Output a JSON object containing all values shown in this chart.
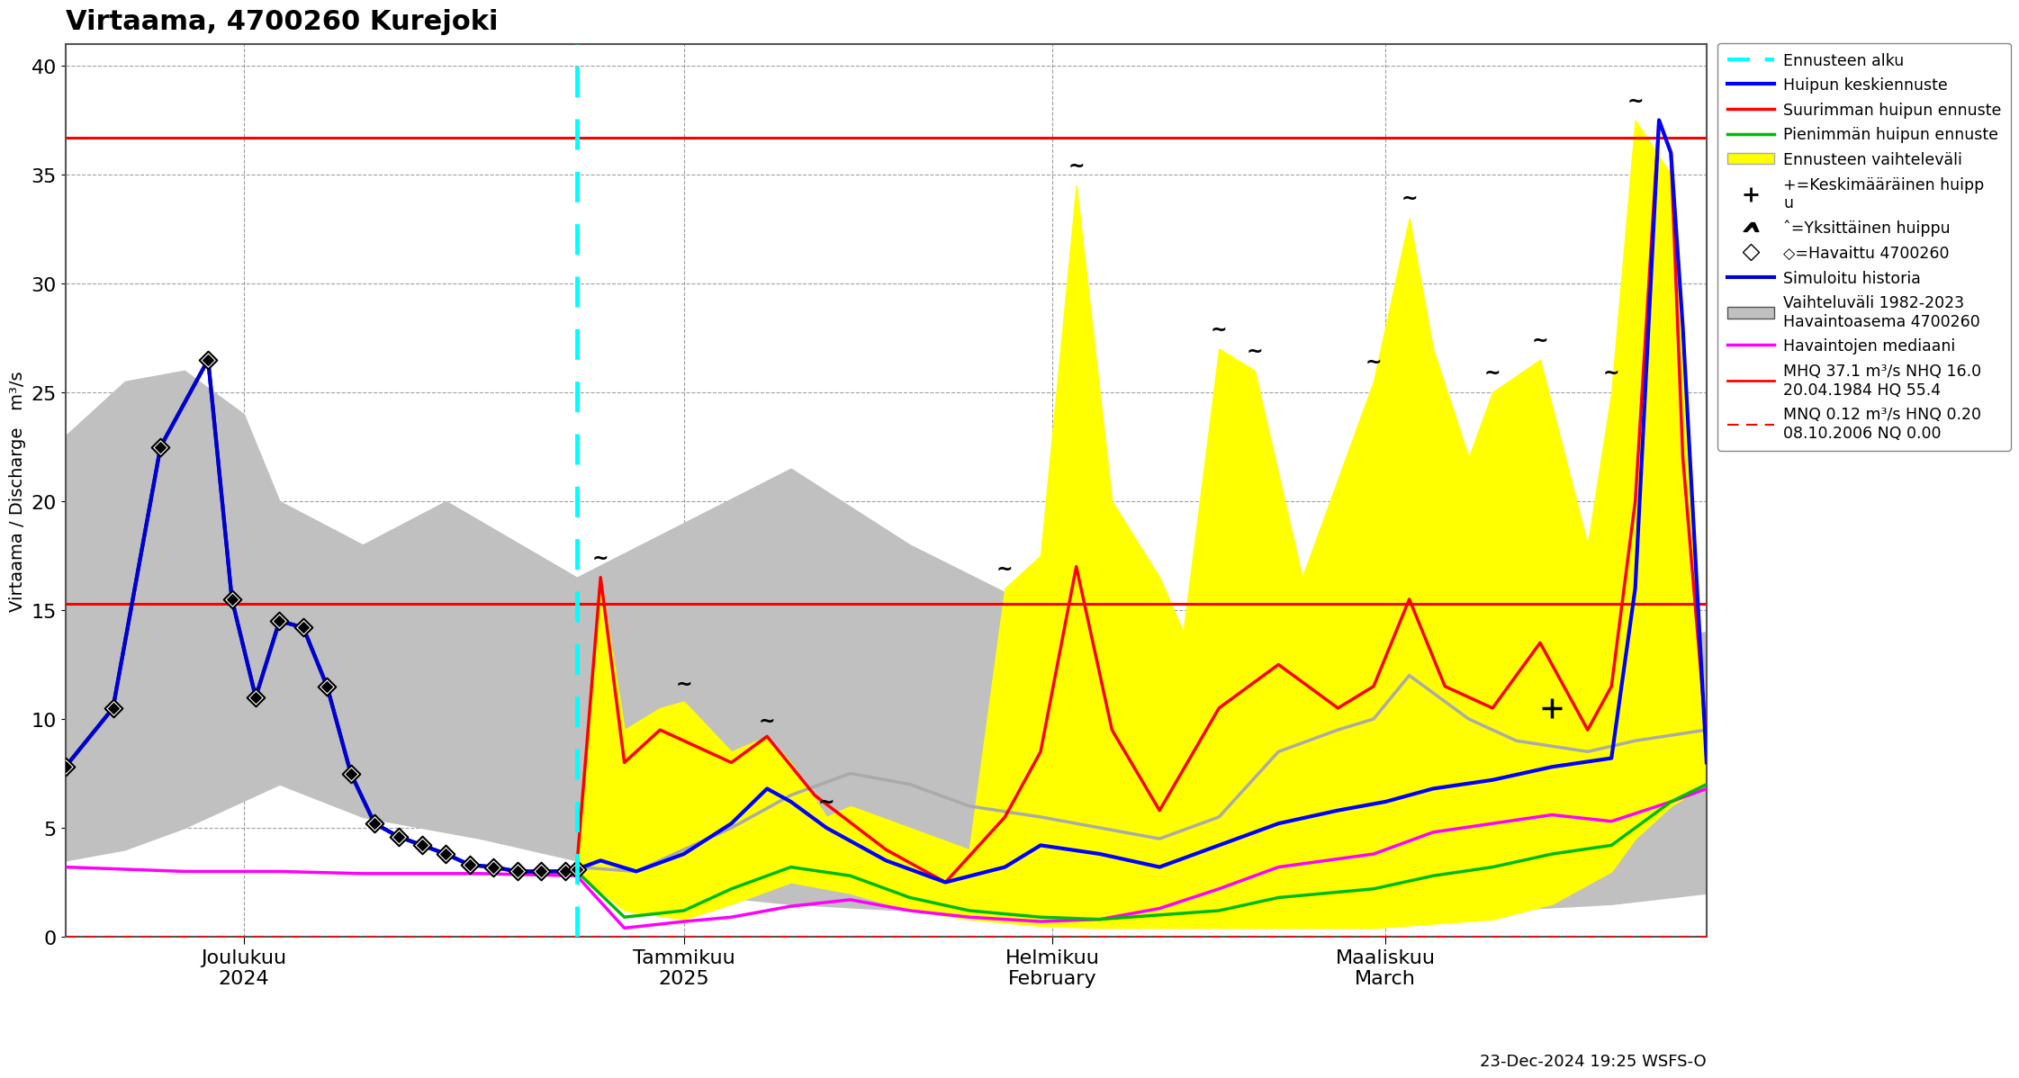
{
  "title": "Virtaama, 4700260 Kurejoki",
  "ylabel": "Virtaama / Discharge   m³/s",
  "ylim": [
    0,
    41
  ],
  "yticks": [
    0,
    5,
    10,
    15,
    20,
    25,
    30,
    35,
    40
  ],
  "bg_color": "#ffffff",
  "hline_upper": 36.7,
  "hline_lower": 15.3,
  "forecast_start": "2024-12-23",
  "t_start": "2024-11-10",
  "t_end": "2025-03-28",
  "xtick_dates": [
    "2024-11-25",
    "2025-01-01",
    "2025-02-01",
    "2025-03-01"
  ],
  "xtick_labels": [
    "Joulukuu\n2024",
    "Tammikuu\n2025",
    "Helmikuu\nFebruary",
    "Maaliskuu\nMarch"
  ],
  "legend_labels": {
    "ennusteen_alku": "Ennusteen alku",
    "huipun_keski": "Huipun keskiennuste",
    "suurimman": "Suurimman huipun ennuste",
    "pienimman": "Pienimmän huipun ennuste",
    "vaihteluvali": "Ennusteen vaihteleväli",
    "keskimaarainen": "+=Keskimääräinen huipp\nu",
    "yksittainen": "ˆ=Yksittäinen huippu",
    "havaittu": "◇=Havaittu 4700260",
    "simuloitu": "Simuloitu historia",
    "vaihteluvali2": "Vaihteluväli 1982-2023\nHavaintoasema 4700260",
    "mediaani": "Havaintojen mediaani",
    "mhq": "MHQ 37.1 m³/s NHQ 16.0\n20.04.1984 HQ 55.4",
    "mnq": "MNQ 0.12 m³/s HNQ 0.20\n08.10.2006 NQ 0.00"
  },
  "date_label": "23-Dec-2024 19:25 WSFS-O",
  "colors": {
    "cyan": "#00ffff",
    "blue": "#0000ff",
    "blue_dark": "#0000cc",
    "red": "#ff0000",
    "green": "#00bb00",
    "yellow": "#ffff00",
    "gray": "#c0c0c0",
    "gray_line": "#aaaaaa",
    "magenta": "#ff00ff",
    "black": "#000000",
    "white": "#ffffff"
  },
  "gray_fill": {
    "lower": [
      [
        "2024-11-10",
        3.5
      ],
      [
        "2024-11-15",
        4.0
      ],
      [
        "2024-11-20",
        5.0
      ],
      [
        "2024-11-28",
        7.0
      ],
      [
        "2024-12-05",
        5.5
      ],
      [
        "2024-12-15",
        4.5
      ],
      [
        "2024-12-23",
        3.5
      ],
      [
        "2025-01-01",
        2.0
      ],
      [
        "2025-01-10",
        1.5
      ],
      [
        "2025-01-20",
        1.2
      ],
      [
        "2025-01-31",
        1.0
      ],
      [
        "2025-02-10",
        0.8
      ],
      [
        "2025-02-20",
        0.8
      ],
      [
        "2025-02-28",
        0.8
      ],
      [
        "2025-03-10",
        1.2
      ],
      [
        "2025-03-20",
        1.5
      ],
      [
        "2025-03-28",
        2.0
      ]
    ],
    "upper": [
      [
        "2024-11-10",
        23.0
      ],
      [
        "2024-11-15",
        25.5
      ],
      [
        "2024-11-20",
        26.0
      ],
      [
        "2024-11-25",
        24.0
      ],
      [
        "2024-11-28",
        20.0
      ],
      [
        "2024-12-05",
        18.0
      ],
      [
        "2024-12-12",
        20.0
      ],
      [
        "2024-12-23",
        16.5
      ],
      [
        "2025-01-01",
        19.0
      ],
      [
        "2025-01-10",
        21.5
      ],
      [
        "2025-01-20",
        18.0
      ],
      [
        "2025-01-31",
        15.0
      ],
      [
        "2025-02-10",
        11.5
      ],
      [
        "2025-02-15",
        9.5
      ],
      [
        "2025-02-20",
        8.5
      ],
      [
        "2025-02-28",
        7.5
      ],
      [
        "2025-03-10",
        10.5
      ],
      [
        "2025-03-15",
        12.5
      ],
      [
        "2025-03-20",
        13.5
      ],
      [
        "2025-03-28",
        14.0
      ]
    ]
  },
  "yellow_fill": {
    "lower": [
      [
        "2024-12-23",
        3.0
      ],
      [
        "2024-12-27",
        1.2
      ],
      [
        "2025-01-01",
        0.8
      ],
      [
        "2025-01-05",
        1.5
      ],
      [
        "2025-01-10",
        2.5
      ],
      [
        "2025-01-15",
        2.0
      ],
      [
        "2025-01-20",
        1.2
      ],
      [
        "2025-01-25",
        0.8
      ],
      [
        "2025-01-31",
        0.5
      ],
      [
        "2025-02-05",
        0.4
      ],
      [
        "2025-02-10",
        0.4
      ],
      [
        "2025-02-15",
        0.4
      ],
      [
        "2025-02-20",
        0.4
      ],
      [
        "2025-02-28",
        0.4
      ],
      [
        "2025-03-05",
        0.6
      ],
      [
        "2025-03-10",
        0.8
      ],
      [
        "2025-03-15",
        1.5
      ],
      [
        "2025-03-20",
        3.0
      ],
      [
        "2025-03-22",
        4.5
      ],
      [
        "2025-03-25",
        6.0
      ],
      [
        "2025-03-28",
        7.0
      ]
    ],
    "upper": [
      [
        "2024-12-23",
        3.0
      ],
      [
        "2024-12-25",
        16.5
      ],
      [
        "2024-12-27",
        9.5
      ],
      [
        "2024-12-30",
        10.5
      ],
      [
        "2025-01-01",
        10.8
      ],
      [
        "2025-01-05",
        8.5
      ],
      [
        "2025-01-08",
        9.2
      ],
      [
        "2025-01-10",
        8.0
      ],
      [
        "2025-01-13",
        5.5
      ],
      [
        "2025-01-15",
        6.0
      ],
      [
        "2025-01-20",
        5.0
      ],
      [
        "2025-01-25",
        4.0
      ],
      [
        "2025-01-28",
        16.0
      ],
      [
        "2025-01-31",
        17.5
      ],
      [
        "2025-02-03",
        34.5
      ],
      [
        "2025-02-06",
        20.0
      ],
      [
        "2025-02-10",
        16.5
      ],
      [
        "2025-02-12",
        14.0
      ],
      [
        "2025-02-15",
        27.0
      ],
      [
        "2025-02-18",
        26.0
      ],
      [
        "2025-02-22",
        16.5
      ],
      [
        "2025-02-28",
        25.5
      ],
      [
        "2025-03-03",
        33.0
      ],
      [
        "2025-03-05",
        27.0
      ],
      [
        "2025-03-08",
        22.0
      ],
      [
        "2025-03-10",
        25.0
      ],
      [
        "2025-03-14",
        26.5
      ],
      [
        "2025-03-18",
        18.0
      ],
      [
        "2025-03-20",
        25.0
      ],
      [
        "2025-03-22",
        37.5
      ],
      [
        "2025-03-25",
        35.0
      ],
      [
        "2025-03-28",
        7.0
      ]
    ]
  },
  "gray_sim_line": [
    [
      "2024-12-23",
      3.2
    ],
    [
      "2024-12-28",
      3.0
    ],
    [
      "2025-01-01",
      4.0
    ],
    [
      "2025-01-05",
      5.0
    ],
    [
      "2025-01-10",
      6.5
    ],
    [
      "2025-01-15",
      7.5
    ],
    [
      "2025-01-20",
      7.0
    ],
    [
      "2025-01-25",
      6.0
    ],
    [
      "2025-01-31",
      5.5
    ],
    [
      "2025-02-05",
      5.0
    ],
    [
      "2025-02-10",
      4.5
    ],
    [
      "2025-02-15",
      5.5
    ],
    [
      "2025-02-20",
      8.5
    ],
    [
      "2025-02-25",
      9.5
    ],
    [
      "2025-02-28",
      10.0
    ],
    [
      "2025-03-03",
      12.0
    ],
    [
      "2025-03-08",
      10.0
    ],
    [
      "2025-03-12",
      9.0
    ],
    [
      "2025-03-18",
      8.5
    ],
    [
      "2025-03-22",
      9.0
    ],
    [
      "2025-03-28",
      9.5
    ]
  ],
  "median_line": [
    [
      "2024-11-10",
      3.2
    ],
    [
      "2024-11-20",
      3.0
    ],
    [
      "2024-11-28",
      3.0
    ],
    [
      "2024-12-05",
      2.9
    ],
    [
      "2024-12-15",
      2.9
    ],
    [
      "2024-12-23",
      2.8
    ],
    [
      "2024-12-27",
      0.4
    ],
    [
      "2025-01-01",
      0.7
    ],
    [
      "2025-01-05",
      0.9
    ],
    [
      "2025-01-10",
      1.4
    ],
    [
      "2025-01-15",
      1.7
    ],
    [
      "2025-01-20",
      1.2
    ],
    [
      "2025-01-25",
      0.9
    ],
    [
      "2025-01-31",
      0.7
    ],
    [
      "2025-02-05",
      0.8
    ],
    [
      "2025-02-10",
      1.3
    ],
    [
      "2025-02-15",
      2.2
    ],
    [
      "2025-02-20",
      3.2
    ],
    [
      "2025-02-28",
      3.8
    ],
    [
      "2025-03-05",
      4.8
    ],
    [
      "2025-03-10",
      5.2
    ],
    [
      "2025-03-15",
      5.6
    ],
    [
      "2025-03-20",
      5.3
    ],
    [
      "2025-03-25",
      6.2
    ],
    [
      "2025-03-28",
      6.8
    ]
  ],
  "blue_mean_line": [
    [
      "2024-11-10",
      7.8
    ],
    [
      "2024-11-14",
      10.5
    ],
    [
      "2024-11-18",
      22.5
    ],
    [
      "2024-11-22",
      26.5
    ],
    [
      "2024-11-24",
      15.5
    ],
    [
      "2024-11-26",
      11.0
    ],
    [
      "2024-11-28",
      14.5
    ],
    [
      "2024-11-30",
      14.2
    ],
    [
      "2024-12-02",
      11.5
    ],
    [
      "2024-12-04",
      7.5
    ],
    [
      "2024-12-06",
      5.2
    ],
    [
      "2024-12-08",
      4.6
    ],
    [
      "2024-12-10",
      4.2
    ],
    [
      "2024-12-12",
      3.8
    ],
    [
      "2024-12-14",
      3.3
    ],
    [
      "2024-12-16",
      3.2
    ],
    [
      "2024-12-18",
      3.0
    ],
    [
      "2024-12-20",
      3.0
    ],
    [
      "2024-12-22",
      3.0
    ],
    [
      "2024-12-23",
      3.1
    ],
    [
      "2024-12-25",
      3.5
    ],
    [
      "2024-12-28",
      3.0
    ],
    [
      "2025-01-01",
      3.8
    ],
    [
      "2025-01-05",
      5.2
    ],
    [
      "2025-01-08",
      6.8
    ],
    [
      "2025-01-10",
      6.2
    ],
    [
      "2025-01-13",
      5.0
    ],
    [
      "2025-01-18",
      3.5
    ],
    [
      "2025-01-23",
      2.5
    ],
    [
      "2025-01-28",
      3.2
    ],
    [
      "2025-01-31",
      4.2
    ],
    [
      "2025-02-05",
      3.8
    ],
    [
      "2025-02-10",
      3.2
    ],
    [
      "2025-02-15",
      4.2
    ],
    [
      "2025-02-20",
      5.2
    ],
    [
      "2025-02-25",
      5.8
    ],
    [
      "2025-03-01",
      6.2
    ],
    [
      "2025-03-05",
      6.8
    ],
    [
      "2025-03-10",
      7.2
    ],
    [
      "2025-03-15",
      7.8
    ],
    [
      "2025-03-20",
      8.2
    ],
    [
      "2025-03-22",
      16.0
    ],
    [
      "2025-03-24",
      37.5
    ],
    [
      "2025-03-25",
      36.0
    ],
    [
      "2025-03-26",
      28.0
    ],
    [
      "2025-03-28",
      8.0
    ]
  ],
  "red_max_line": [
    [
      "2024-12-23",
      3.2
    ],
    [
      "2024-12-25",
      16.5
    ],
    [
      "2024-12-27",
      8.0
    ],
    [
      "2024-12-30",
      9.5
    ],
    [
      "2025-01-01",
      9.0
    ],
    [
      "2025-01-05",
      8.0
    ],
    [
      "2025-01-08",
      9.2
    ],
    [
      "2025-01-12",
      6.5
    ],
    [
      "2025-01-18",
      4.0
    ],
    [
      "2025-01-23",
      2.5
    ],
    [
      "2025-01-28",
      5.5
    ],
    [
      "2025-01-31",
      8.5
    ],
    [
      "2025-02-03",
      17.0
    ],
    [
      "2025-02-06",
      9.5
    ],
    [
      "2025-02-10",
      5.8
    ],
    [
      "2025-02-15",
      10.5
    ],
    [
      "2025-02-20",
      12.5
    ],
    [
      "2025-02-25",
      10.5
    ],
    [
      "2025-02-28",
      11.5
    ],
    [
      "2025-03-03",
      15.5
    ],
    [
      "2025-03-06",
      11.5
    ],
    [
      "2025-03-10",
      10.5
    ],
    [
      "2025-03-14",
      13.5
    ],
    [
      "2025-03-18",
      9.5
    ],
    [
      "2025-03-20",
      11.5
    ],
    [
      "2025-03-22",
      20.0
    ],
    [
      "2025-03-24",
      37.5
    ],
    [
      "2025-03-25",
      36.0
    ],
    [
      "2025-03-26",
      22.0
    ],
    [
      "2025-03-28",
      9.0
    ]
  ],
  "green_min_line": [
    [
      "2024-12-23",
      3.0
    ],
    [
      "2024-12-27",
      0.9
    ],
    [
      "2025-01-01",
      1.2
    ],
    [
      "2025-01-05",
      2.2
    ],
    [
      "2025-01-10",
      3.2
    ],
    [
      "2025-01-15",
      2.8
    ],
    [
      "2025-01-20",
      1.8
    ],
    [
      "2025-01-25",
      1.2
    ],
    [
      "2025-01-31",
      0.9
    ],
    [
      "2025-02-05",
      0.8
    ],
    [
      "2025-02-10",
      1.0
    ],
    [
      "2025-02-15",
      1.2
    ],
    [
      "2025-02-20",
      1.8
    ],
    [
      "2025-02-28",
      2.2
    ],
    [
      "2025-03-05",
      2.8
    ],
    [
      "2025-03-10",
      3.2
    ],
    [
      "2025-03-15",
      3.8
    ],
    [
      "2025-03-20",
      4.2
    ],
    [
      "2025-03-25",
      6.2
    ],
    [
      "2025-03-28",
      7.0
    ]
  ],
  "observed_diamonds": [
    [
      "2024-11-10",
      7.8
    ],
    [
      "2024-11-14",
      10.5
    ],
    [
      "2024-11-18",
      22.5
    ],
    [
      "2024-11-22",
      26.5
    ],
    [
      "2024-11-24",
      15.5
    ],
    [
      "2024-11-26",
      11.0
    ],
    [
      "2024-11-28",
      14.5
    ],
    [
      "2024-11-30",
      14.2
    ],
    [
      "2024-12-02",
      11.5
    ],
    [
      "2024-12-04",
      7.5
    ],
    [
      "2024-12-06",
      5.2
    ],
    [
      "2024-12-08",
      4.6
    ],
    [
      "2024-12-10",
      4.2
    ],
    [
      "2024-12-12",
      3.8
    ],
    [
      "2024-12-14",
      3.3
    ],
    [
      "2024-12-16",
      3.2
    ],
    [
      "2024-12-18",
      3.0
    ],
    [
      "2024-12-20",
      3.0
    ],
    [
      "2024-12-22",
      3.0
    ],
    [
      "2024-12-23",
      3.1
    ]
  ],
  "arc_markers": [
    [
      "2024-12-25",
      17.0
    ],
    [
      "2025-01-01",
      11.2
    ],
    [
      "2025-01-08",
      9.5
    ],
    [
      "2025-01-13",
      5.8
    ],
    [
      "2025-01-28",
      16.5
    ],
    [
      "2025-02-03",
      35.0
    ],
    [
      "2025-02-15",
      27.5
    ],
    [
      "2025-02-18",
      26.5
    ],
    [
      "2025-02-28",
      26.0
    ],
    [
      "2025-03-03",
      33.5
    ],
    [
      "2025-03-10",
      25.5
    ],
    [
      "2025-03-14",
      27.0
    ],
    [
      "2025-03-20",
      25.5
    ],
    [
      "2025-03-22",
      38.0
    ]
  ],
  "plus_markers": [
    [
      "2025-03-15",
      10.5
    ]
  ]
}
